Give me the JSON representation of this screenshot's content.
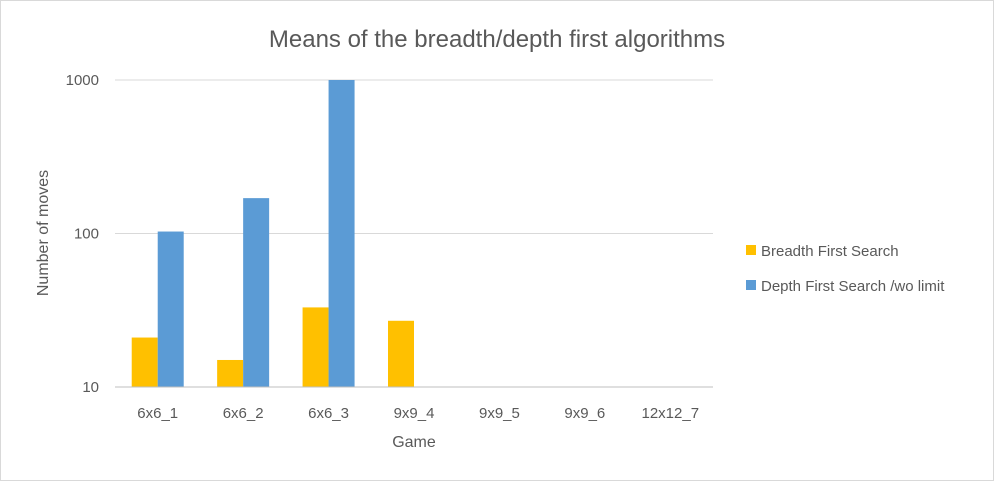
{
  "chart_data": {
    "type": "bar",
    "title": "Means of the breadth/depth first algorithms",
    "xlabel": "Game",
    "ylabel": "Number of moves",
    "yscale": "log",
    "ylim": [
      10,
      1000
    ],
    "yticks": [
      10,
      100,
      1000
    ],
    "ytick_labels": [
      "10",
      "100",
      "1000"
    ],
    "grid": true,
    "legend_position": "right",
    "categories": [
      "6x6_1",
      "6x6_2",
      "6x6_3",
      "9x9_4",
      "9x9_5",
      "9x9_6",
      "12x12_7"
    ],
    "series": [
      {
        "name": "Breadth First Search",
        "color": "#ffc000",
        "values": [
          21,
          15,
          33,
          27,
          null,
          null,
          null
        ]
      },
      {
        "name": "Depth First Search /wo limit",
        "color": "#5b9bd5",
        "values": [
          103,
          170,
          1000,
          null,
          null,
          null,
          null
        ]
      }
    ]
  }
}
